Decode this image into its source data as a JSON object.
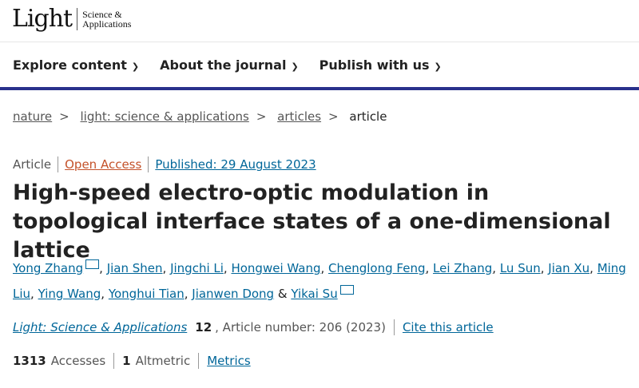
{
  "logo": {
    "main": "Light",
    "sub1": "Science &",
    "sub2": "Applications"
  },
  "nav": [
    {
      "label": "Explore content"
    },
    {
      "label": "About the journal"
    },
    {
      "label": "Publish with us"
    }
  ],
  "breadcrumb": [
    {
      "label": "nature"
    },
    {
      "label": "light: science & applications"
    },
    {
      "label": "articles"
    },
    {
      "label": "article"
    }
  ],
  "meta": {
    "type": "Article",
    "access": "Open Access",
    "published": "Published: 29 August 2023"
  },
  "title": "High-speed electro-optic modulation in topological interface states of a one-dimensional lattice",
  "authors": [
    "Yong Zhang",
    "Jian Shen",
    "Jingchi Li",
    "Hongwei Wang",
    "Chenglong Feng",
    "Lei Zhang",
    "Lu Sun",
    "Jian Xu",
    "Ming Liu",
    "Ying Wang",
    "Yonghui Tian",
    "Jianwen Dong",
    "Yikai Su"
  ],
  "citation": {
    "journal": "Light: Science & Applications",
    "volume": "12",
    "article": ", Article number: 206 (2023)",
    "cite_link": "Cite this article"
  },
  "stats": {
    "accesses": "1313",
    "accesses_label": "Accesses",
    "altmetric": "1",
    "altmetric_label": "Altmetric",
    "metrics_link": "Metrics"
  },
  "colors": {
    "link": "#006699",
    "open_access": "#c4522a",
    "nav_border": "#29318c"
  }
}
